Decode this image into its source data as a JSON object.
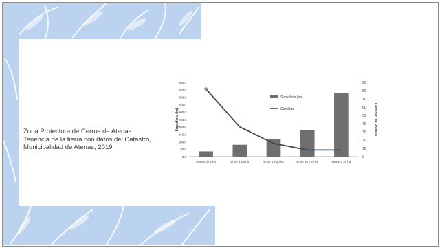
{
  "slide": {
    "caption": "Zona Protectora de Cerros de Atenas: Tenencia de la tierra con datos del Catastro, Municipalidad de Atenas, 2019",
    "background_color": "#ffffff",
    "accent_color": "#bcd3ef"
  },
  "chart_data": {
    "type": "bar",
    "categories": [
      "Menos de 1 ha",
      "Entre 1 y 5 ha",
      "Entre 5 y 10 ha",
      "Entre 10 y 20 ha",
      "Mayor a 20 ha"
    ],
    "series": [
      {
        "name": "Superficie (ha)",
        "type": "bar",
        "axis": "left",
        "color": "#6f6f6f",
        "values": [
          35,
          80,
          120,
          180,
          430
        ]
      },
      {
        "name": "Cantidad",
        "type": "line",
        "axis": "right",
        "color": "#3f4a56",
        "values": [
          82,
          36,
          16,
          8,
          8
        ]
      }
    ],
    "ylabel": "Superficie (ha)",
    "y2label": "Cantidad de Predios",
    "ylim": [
      0,
      500
    ],
    "y2lim": [
      0,
      90
    ],
    "yticks": [
      "0.0",
      "50.0",
      "100.0",
      "150.0",
      "200.0",
      "250.0",
      "300.0",
      "350.0",
      "400.0",
      "450.0",
      "500.0"
    ],
    "y2ticks": [
      "0",
      "10",
      "20",
      "30",
      "40",
      "50",
      "60",
      "70",
      "80",
      "90"
    ],
    "legend_position": "top-center",
    "grid": false
  }
}
